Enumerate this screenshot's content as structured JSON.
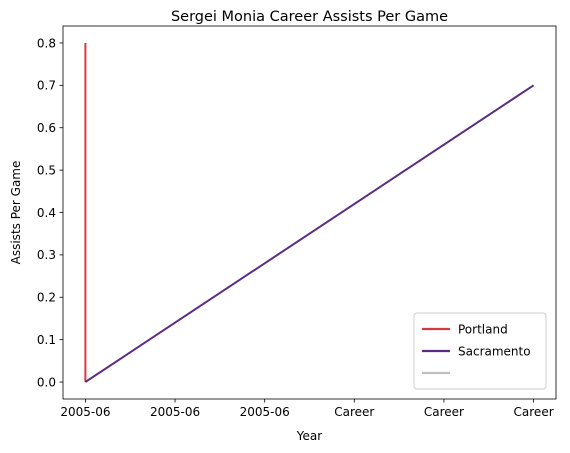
{
  "chart_data": {
    "type": "line",
    "title": "Sergei Monia Career Assists Per Game",
    "xlabel": "Year",
    "ylabel": "Assists Per Game",
    "x_tick_labels": [
      "2005-06",
      "2005-06",
      "2005-06",
      "Career",
      "Career",
      "Career"
    ],
    "y_ticks": [
      0.0,
      0.1,
      0.2,
      0.3,
      0.4,
      0.5,
      0.6,
      0.7,
      0.8
    ],
    "y_tick_labels": [
      "0.0",
      "0.1",
      "0.2",
      "0.3",
      "0.4",
      "0.5",
      "0.6",
      "0.7",
      "0.8"
    ],
    "xlim": [
      -0.25,
      5.25
    ],
    "ylim": [
      -0.04,
      0.84
    ],
    "grid": false,
    "legend_position": "lower-right",
    "series": [
      {
        "name": "Portland",
        "color": "#d9383e",
        "points": [
          [
            0,
            0.0
          ],
          [
            0,
            0.8
          ]
        ]
      },
      {
        "name": "Sacramento",
        "color": "#5a2d82",
        "points": [
          [
            0,
            0.0
          ],
          [
            5,
            0.7
          ]
        ]
      },
      {
        "name": "",
        "color": "#c0c0c0",
        "points": []
      }
    ]
  }
}
